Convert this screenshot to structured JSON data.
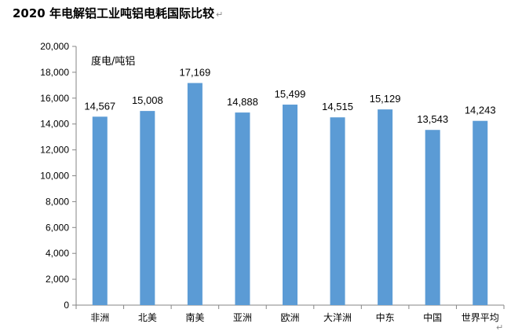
{
  "title": "2020 年电解铝工业吨铝电耗国际比较",
  "title_mark": "↵",
  "trailing_mark": "↵",
  "chart_data": {
    "type": "bar",
    "title": "2020 年电解铝工业吨铝电耗国际比较",
    "ylabel": "度电/吨铝",
    "ylim": [
      0,
      20000
    ],
    "ytick_step": 2000,
    "yticks": [
      "0",
      "2,000",
      "4,000",
      "6,000",
      "8,000",
      "10,000",
      "12,000",
      "14,000",
      "16,000",
      "18,000",
      "20,000"
    ],
    "categories": [
      "非洲",
      "北美",
      "南美",
      "亚洲",
      "欧洲",
      "大洋洲",
      "中东",
      "中国",
      "世界平均"
    ],
    "values": [
      14567,
      15008,
      17169,
      14888,
      15499,
      14515,
      15129,
      13543,
      14243
    ],
    "value_labels": [
      "14,567",
      "15,008",
      "17,169",
      "14,888",
      "15,499",
      "14,515",
      "15,129",
      "13,543",
      "14,243"
    ],
    "bar_color": "#5b9bd5",
    "grid": false,
    "legend": "none"
  }
}
